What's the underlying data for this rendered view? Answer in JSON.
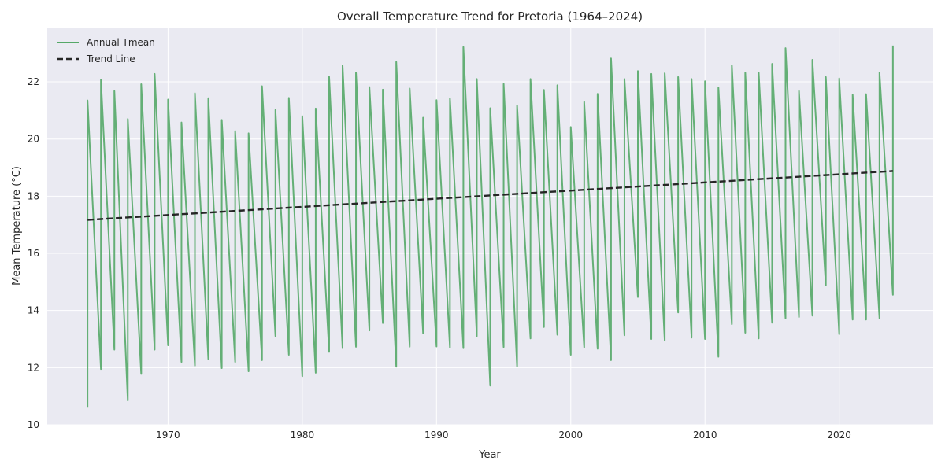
{
  "chart_data": {
    "type": "line",
    "title": "Overall Temperature Trend for Pretoria (1964–2024)",
    "xlabel": "Year",
    "ylabel": "Mean Temperature (°C)",
    "xlim": [
      1961,
      2027
    ],
    "ylim": [
      10,
      23.9
    ],
    "xticks": [
      1970,
      1980,
      1990,
      2000,
      2010,
      2020
    ],
    "yticks": [
      10,
      12,
      14,
      16,
      18,
      20,
      22
    ],
    "grid": true,
    "legend_position": "top-left",
    "colors": {
      "background": "#eaeaf2",
      "grid": "#ffffff",
      "series": "#55a868",
      "trend": "#262626"
    },
    "series": [
      {
        "name": "Annual Tmean",
        "style": "solid",
        "x": [
          1964.0,
          1964.0,
          1965.0,
          1965.0,
          1966.0,
          1966.0,
          1967.0,
          1967.0,
          1968.0,
          1968.0,
          1969.0,
          1969.0,
          1970.0,
          1970.0,
          1971.0,
          1971.0,
          1972.0,
          1972.0,
          1973.0,
          1973.0,
          1974.0,
          1974.0,
          1975.0,
          1975.0,
          1976.0,
          1976.0,
          1977.0,
          1977.0,
          1978.0,
          1978.0,
          1979.0,
          1979.0,
          1980.0,
          1980.0,
          1981.0,
          1981.0,
          1982.0,
          1982.0,
          1983.0,
          1983.0,
          1984.0,
          1984.0,
          1985.0,
          1985.0,
          1986.0,
          1986.0,
          1987.0,
          1987.0,
          1988.0,
          1988.0,
          1989.0,
          1989.0,
          1990.0,
          1990.0,
          1991.0,
          1991.0,
          1992.0,
          1992.0,
          1993.0,
          1993.0,
          1994.0,
          1994.0,
          1995.0,
          1995.0,
          1996.0,
          1996.0,
          1997.0,
          1997.0,
          1998.0,
          1998.0,
          1999.0,
          1999.0,
          2000.0,
          2000.0,
          2001.0,
          2001.0,
          2002.0,
          2002.0,
          2003.0,
          2003.0,
          2004.0,
          2004.0,
          2005.0,
          2005.0,
          2006.0,
          2006.0,
          2007.0,
          2007.0,
          2008.0,
          2008.0,
          2009.0,
          2009.0,
          2010.0,
          2010.0,
          2011.0,
          2011.0,
          2012.0,
          2012.0,
          2013.0,
          2013.0,
          2014.0,
          2014.0,
          2015.0,
          2015.0,
          2016.0,
          2016.0,
          2017.0,
          2017.0,
          2018.0,
          2018.0,
          2019.0,
          2019.0,
          2020.0,
          2020.0,
          2021.0,
          2021.0,
          2022.0,
          2022.0,
          2023.0,
          2023.0,
          2024.0,
          2024.0
        ],
        "values": [
          10.6,
          21.35,
          11.95,
          22.08,
          12.63,
          21.68,
          10.85,
          20.7,
          11.78,
          21.92,
          12.63,
          22.28,
          12.78,
          21.38,
          12.2,
          20.58,
          12.07,
          21.6,
          12.3,
          21.43,
          11.98,
          20.67,
          12.2,
          20.28,
          11.87,
          20.2,
          12.26,
          21.85,
          13.1,
          21.02,
          12.45,
          21.44,
          11.7,
          20.8,
          11.82,
          21.07,
          12.55,
          22.18,
          12.68,
          22.58,
          12.73,
          22.32,
          13.3,
          21.82,
          13.56,
          21.73,
          12.03,
          22.7,
          12.73,
          21.77,
          13.2,
          20.75,
          12.74,
          21.36,
          12.7,
          21.42,
          12.68,
          23.22,
          13.1,
          22.1,
          11.37,
          21.08,
          12.72,
          21.93,
          12.05,
          21.18,
          13.02,
          22.1,
          13.42,
          21.72,
          13.15,
          21.88,
          12.45,
          20.42,
          12.71,
          21.3,
          12.66,
          21.58,
          12.26,
          22.82,
          13.13,
          22.1,
          14.47,
          22.38,
          13.0,
          22.28,
          12.95,
          22.3,
          13.93,
          22.17,
          13.05,
          22.1,
          13.0,
          22.02,
          12.38,
          21.8,
          13.52,
          22.58,
          13.22,
          22.32,
          13.02,
          22.33,
          13.57,
          22.63,
          13.73,
          23.18,
          13.77,
          21.68,
          13.82,
          22.77,
          14.88,
          22.17,
          13.17,
          22.12,
          13.68,
          21.55,
          13.68,
          21.57,
          13.72,
          22.33,
          14.55,
          23.27
        ]
      },
      {
        "name": "Trend Line",
        "style": "dashed",
        "x": [
          1964,
          2024
        ],
        "values": [
          17.17,
          18.88
        ]
      }
    ]
  }
}
